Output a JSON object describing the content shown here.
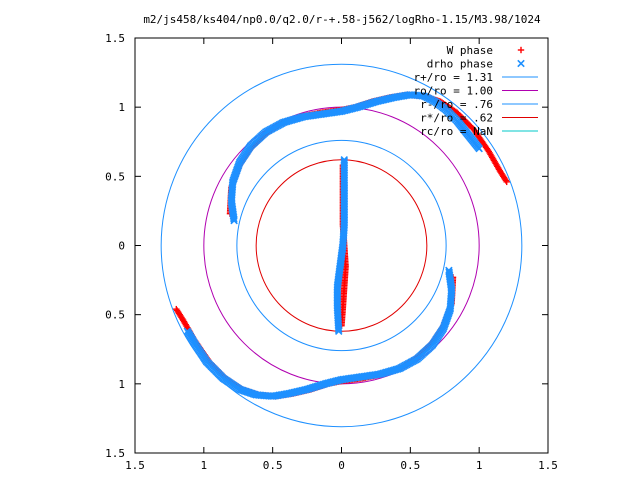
{
  "chart_data": {
    "type": "scatter",
    "title": "m2/js458/ks404/np0.0/q2.0/r-+.58-j562/logRho-1.15/M3.98/1024",
    "xlabel": "",
    "ylabel": "",
    "xlim": [
      -1.5,
      1.5
    ],
    "ylim": [
      -1.5,
      1.5
    ],
    "x_ticks": [
      {
        "value": -1.5,
        "label": "1.5"
      },
      {
        "value": -1.0,
        "label": "1"
      },
      {
        "value": -0.5,
        "label": "0.5"
      },
      {
        "value": 0.0,
        "label": "0"
      },
      {
        "value": 0.5,
        "label": "0.5"
      },
      {
        "value": 1.0,
        "label": "1"
      },
      {
        "value": 1.5,
        "label": "1.5"
      }
    ],
    "y_ticks": [
      {
        "value": 1.5,
        "label": "1.5"
      },
      {
        "value": 1.0,
        "label": "1"
      },
      {
        "value": 0.5,
        "label": "0.5"
      },
      {
        "value": 0.0,
        "label": "0"
      },
      {
        "value": -0.5,
        "label": "0.5"
      },
      {
        "value": -1.0,
        "label": "1"
      },
      {
        "value": -1.5,
        "label": "1.5"
      }
    ],
    "grid": false,
    "legend_position": "top-right",
    "series": [
      {
        "name": "W phase",
        "kind": "points",
        "marker": "+",
        "color": "#ff0000",
        "points": [
          [
            -0.81,
            0.23
          ],
          [
            -0.8,
            0.42
          ],
          [
            -0.74,
            0.58
          ],
          [
            -0.66,
            0.7
          ],
          [
            -0.56,
            0.8
          ],
          [
            -0.44,
            0.88
          ],
          [
            -0.3,
            0.93
          ],
          [
            -0.15,
            0.96
          ],
          [
            0.0,
            0.98
          ],
          [
            0.1,
            1.0
          ],
          [
            0.22,
            1.04
          ],
          [
            0.35,
            1.07
          ],
          [
            0.48,
            1.09
          ],
          [
            0.6,
            1.08
          ],
          [
            0.72,
            1.04
          ],
          [
            0.84,
            0.96
          ],
          [
            0.96,
            0.84
          ],
          [
            1.07,
            0.68
          ],
          [
            1.15,
            0.54
          ],
          [
            1.2,
            0.46
          ],
          [
            0.81,
            -0.23
          ],
          [
            0.8,
            -0.42
          ],
          [
            0.74,
            -0.58
          ],
          [
            0.66,
            -0.7
          ],
          [
            0.56,
            -0.8
          ],
          [
            0.44,
            -0.88
          ],
          [
            0.3,
            -0.93
          ],
          [
            0.15,
            -0.96
          ],
          [
            0.0,
            -0.98
          ],
          [
            -0.1,
            -1.0
          ],
          [
            -0.22,
            -1.04
          ],
          [
            -0.35,
            -1.07
          ],
          [
            -0.48,
            -1.09
          ],
          [
            -0.6,
            -1.08
          ],
          [
            -0.72,
            -1.04
          ],
          [
            -0.84,
            -0.96
          ],
          [
            -0.96,
            -0.84
          ],
          [
            -1.07,
            -0.68
          ],
          [
            -1.15,
            -0.54
          ],
          [
            -1.2,
            -0.46
          ],
          [
            0.0,
            -0.58
          ],
          [
            0.01,
            -0.45
          ],
          [
            0.02,
            -0.3
          ],
          [
            0.03,
            -0.15
          ],
          [
            0.02,
            0.0
          ],
          [
            0.01,
            0.15
          ],
          [
            0.01,
            0.3
          ],
          [
            0.01,
            0.45
          ],
          [
            0.01,
            0.58
          ]
        ]
      },
      {
        "name": "drho phase",
        "kind": "points",
        "marker": "x",
        "color": "#1e90ff",
        "points": [
          [
            -0.78,
            0.18
          ],
          [
            -0.8,
            0.32
          ],
          [
            -0.79,
            0.46
          ],
          [
            -0.74,
            0.6
          ],
          [
            -0.66,
            0.72
          ],
          [
            -0.55,
            0.82
          ],
          [
            -0.42,
            0.89
          ],
          [
            -0.28,
            0.93
          ],
          [
            -0.14,
            0.95
          ],
          [
            0.0,
            0.97
          ],
          [
            0.12,
            1.0
          ],
          [
            0.25,
            1.04
          ],
          [
            0.38,
            1.07
          ],
          [
            0.5,
            1.09
          ],
          [
            0.6,
            1.08
          ],
          [
            0.68,
            1.04
          ],
          [
            0.76,
            0.98
          ],
          [
            0.84,
            0.9
          ],
          [
            0.92,
            0.8
          ],
          [
            1.0,
            0.7
          ],
          [
            0.78,
            -0.18
          ],
          [
            0.8,
            -0.32
          ],
          [
            0.79,
            -0.46
          ],
          [
            0.74,
            -0.6
          ],
          [
            0.66,
            -0.72
          ],
          [
            0.55,
            -0.82
          ],
          [
            0.42,
            -0.89
          ],
          [
            0.28,
            -0.93
          ],
          [
            0.14,
            -0.95
          ],
          [
            0.0,
            -0.97
          ],
          [
            -0.12,
            -1.0
          ],
          [
            -0.25,
            -1.04
          ],
          [
            -0.38,
            -1.07
          ],
          [
            -0.5,
            -1.09
          ],
          [
            -0.62,
            -1.08
          ],
          [
            -0.74,
            -1.04
          ],
          [
            -0.86,
            -0.96
          ],
          [
            -0.98,
            -0.84
          ],
          [
            -1.06,
            -0.72
          ],
          [
            -1.12,
            -0.62
          ],
          [
            -0.02,
            -0.62
          ],
          [
            -0.03,
            -0.45
          ],
          [
            -0.03,
            -0.3
          ],
          [
            -0.01,
            -0.15
          ],
          [
            0.01,
            0.0
          ],
          [
            0.02,
            0.15
          ],
          [
            0.02,
            0.3
          ],
          [
            0.02,
            0.45
          ],
          [
            0.02,
            0.62
          ]
        ]
      },
      {
        "name": "r+/ro = 1.31",
        "kind": "circle",
        "radius": 1.31,
        "color": "#1e90ff"
      },
      {
        "name": "ro/ro = 1.00",
        "kind": "circle",
        "radius": 1.0,
        "color": "#b000b0"
      },
      {
        "name": "r-/ro = .76",
        "kind": "circle",
        "radius": 0.76,
        "color": "#1e90ff"
      },
      {
        "name": "r*/ro = .62",
        "kind": "circle",
        "radius": 0.62,
        "color": "#e00000"
      },
      {
        "name": "rc/ro = NaN",
        "kind": "circle",
        "radius": null,
        "color": "#00c8c8"
      }
    ]
  }
}
